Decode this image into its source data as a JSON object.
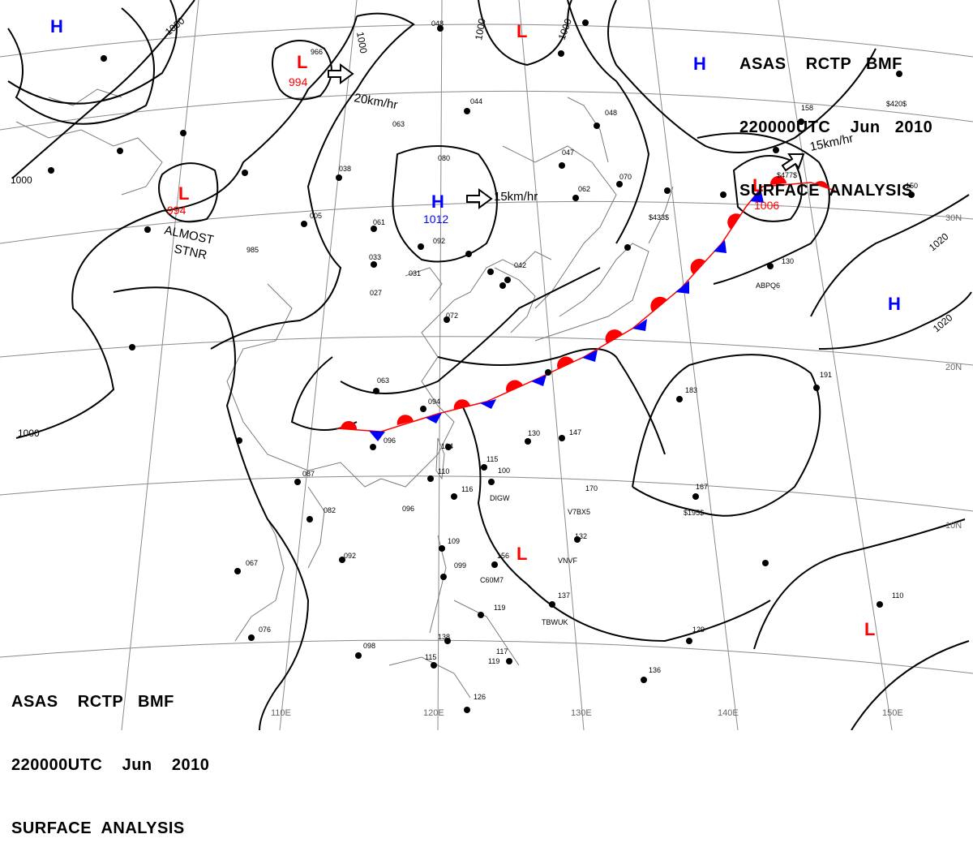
{
  "header_top": {
    "line1": "ASAS    RCTP   BMF",
    "line2": "220000UTC    Jun   2010",
    "line3": "SURFACE  ANALYSIS"
  },
  "header_bottom": {
    "line1": "ASAS    RCTP   BMF",
    "line2": "220000UTC    Jun    2010",
    "line3": "SURFACE  ANALYSIS"
  },
  "isobar_labels": {
    "a": "1000",
    "b": "1000",
    "c": "1000",
    "d": "1000",
    "e": "1000",
    "f": "1000",
    "g": "1020",
    "h": "1020"
  },
  "pressure_centers": {
    "high_nw": "H",
    "low_top_center": "L",
    "low_west_1": "L",
    "low_west_1_value": "994",
    "low_west_2": "L",
    "low_west_2_value": "994",
    "high_center": "H",
    "high_center_value": "1012",
    "high_ne": "H",
    "low_ne": "L",
    "low_ne_value": "1006",
    "high_east": "H",
    "low_south": "L",
    "low_se": "L"
  },
  "motion_labels": {
    "low_west": "20km/hr",
    "high_center": "15km/hr",
    "low_ne": "15km/hr"
  },
  "annotations": {
    "almost": "ALMOST",
    "stnr": "STNR"
  },
  "longitude_labels": [
    "110E",
    "120E",
    "130E",
    "140E",
    "150E"
  ],
  "latitude_labels": [
    "30N",
    "20N",
    "10N"
  ],
  "ship_ids": [
    "DIGW",
    "V7BX5",
    "VNVF",
    "C60M7",
    "TBWUK",
    "ABPQ6",
    "$195$",
    "$433$",
    "$420$",
    "$477$"
  ],
  "station_values": [
    "048",
    "985",
    "966",
    "063",
    "038",
    "005",
    "061",
    "033",
    "031",
    "092",
    "080",
    "042",
    "027",
    "072",
    "094",
    "063",
    "096",
    "087",
    "082",
    "096",
    "092",
    "067",
    "076",
    "098",
    "115",
    "126",
    "104",
    "110",
    "116",
    "115",
    "100",
    "130",
    "119",
    "147",
    "170",
    "132",
    "137",
    "119",
    "117",
    "138",
    "109",
    "099",
    "156",
    "183",
    "191",
    "167",
    "129",
    "136",
    "110",
    "130",
    "150",
    "158",
    "070",
    "062",
    "047",
    "048",
    "044"
  ],
  "colors": {
    "isobar": "#000000",
    "front_warm": "#ff0000",
    "front_cold": "#0000ff",
    "high_label": "#0000ff",
    "low_label": "#ff0000",
    "grid": "#666666",
    "coast": "#777777"
  }
}
